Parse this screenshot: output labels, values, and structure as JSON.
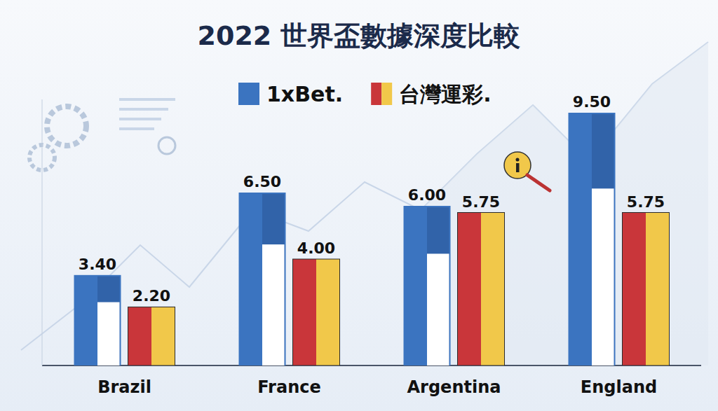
{
  "chart_data": {
    "type": "bar",
    "title": "2022 世界盃數據深度比較",
    "categories": [
      "Brazil",
      "France",
      "Argentina",
      "England"
    ],
    "series": [
      {
        "name": "1xBet.",
        "color": "#3b74c0",
        "values": [
          3.4,
          6.5,
          6.0,
          9.5
        ],
        "value_labels": [
          "3.40",
          "6.50",
          "6.00",
          "9.50"
        ]
      },
      {
        "name": "台灣運彩.",
        "color": "#c9363a",
        "values": [
          2.2,
          4.0,
          5.75,
          5.75
        ],
        "value_labels": [
          "2.20",
          "4.00",
          "5.75",
          "5.75"
        ]
      }
    ],
    "ylim": [
      0,
      10
    ],
    "grid": false,
    "legend": "top",
    "data_labels": true,
    "tick_labels": "x"
  }
}
